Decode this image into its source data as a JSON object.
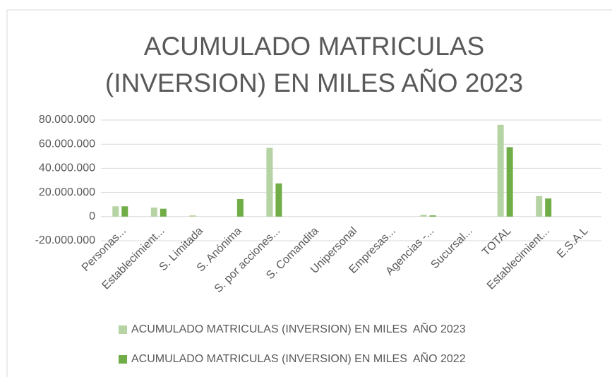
{
  "chart_data": {
    "type": "bar",
    "title": "ACUMULADO MATRICULAS (INVERSION) EN MILES AÑO 2023",
    "categories": [
      "Personas...",
      "Establecimient...",
      "S. Limitada",
      "S. Anónima",
      "S. por acciones...",
      "S. Comandita",
      "Unipersonal",
      "Empresas...",
      "Agencias -...",
      "Sucursal...",
      "TOTAL",
      "Establecimient...",
      "E.S.A.L"
    ],
    "series": [
      {
        "name": "ACUMULADO MATRICULAS (INVERSION) EN MILES  AÑO 2023",
        "color": "#b5d3a3",
        "values": [
          8500000,
          7500000,
          1000000,
          0,
          57000000,
          0,
          0,
          0,
          1500000,
          0,
          76000000,
          17000000,
          0
        ]
      },
      {
        "name": "ACUMULADO MATRICULAS (INVERSION) EN MILES  AÑO 2022",
        "color": "#70ad47",
        "values": [
          8500000,
          6500000,
          0,
          14500000,
          27500000,
          0,
          0,
          0,
          1000000,
          0,
          57500000,
          15000000,
          0
        ]
      }
    ],
    "ylim": [
      -20000000,
      80000000
    ],
    "yticks": [
      {
        "value": -20000000,
        "label": "-20.000.000"
      },
      0,
      {
        "value": 20000000,
        "label": "20.000.000"
      },
      {
        "value": 40000000,
        "label": "40.000.000"
      },
      {
        "value": 60000000,
        "label": "60.000.000"
      },
      {
        "value": 80000000,
        "label": "80.000.000"
      }
    ],
    "grid": true,
    "legend": "bottom"
  }
}
